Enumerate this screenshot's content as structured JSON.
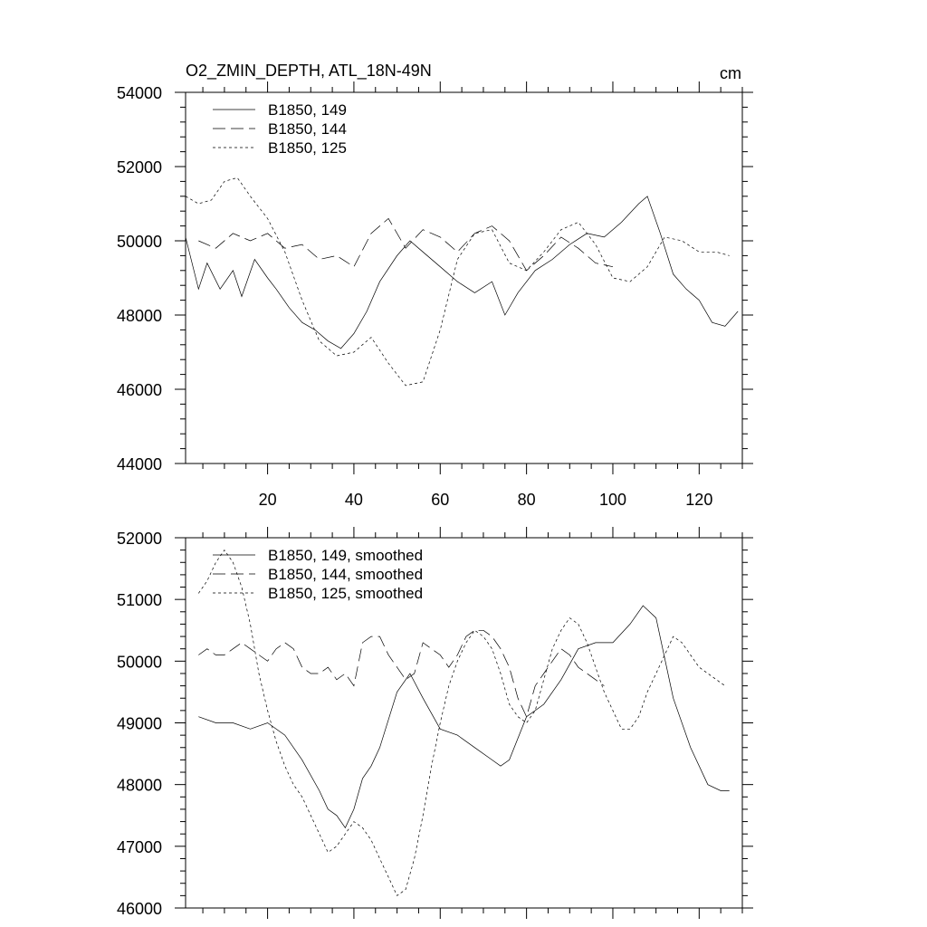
{
  "chart_data": [
    {
      "type": "line",
      "title": "O2_ZMIN_DEPTH, ATL_18N-49N",
      "units": "cm",
      "xlim": [
        1,
        130
      ],
      "ylim": [
        44000,
        54000
      ],
      "x_ticks": [
        20,
        40,
        60,
        80,
        100,
        120
      ],
      "x_tick_labels": [
        "20",
        "40",
        "60",
        "80",
        "100",
        "120"
      ],
      "y_ticks": [
        44000,
        46000,
        48000,
        50000,
        52000,
        54000
      ],
      "y_tick_labels": [
        "44000",
        "46000",
        "48000",
        "50000",
        "52000",
        "54000"
      ],
      "legend_position": "top-left",
      "series": [
        {
          "name": "B1850, 149",
          "dash": "solid",
          "x": [
            1,
            4,
            6,
            9,
            12,
            14,
            17,
            20,
            22,
            25,
            28,
            31,
            34,
            37,
            40,
            43,
            46,
            50,
            53,
            56,
            60,
            64,
            68,
            72,
            75,
            78,
            82,
            86,
            90,
            94,
            98,
            102,
            106,
            108,
            111,
            114,
            117,
            120,
            123,
            126,
            129
          ],
          "values": [
            50100,
            48700,
            49400,
            48700,
            49200,
            48500,
            49500,
            49000,
            48700,
            48200,
            47800,
            47600,
            47300,
            47100,
            47500,
            48100,
            48900,
            49600,
            50000,
            49700,
            49300,
            48900,
            48600,
            48900,
            48000,
            48600,
            49200,
            49500,
            49900,
            50200,
            50100,
            50500,
            51000,
            51200,
            50200,
            49100,
            48700,
            48400,
            47800,
            47700,
            48100
          ]
        },
        {
          "name": "B1850, 144",
          "dash": "long",
          "x": [
            4,
            8,
            12,
            16,
            20,
            24,
            28,
            32,
            36,
            40,
            44,
            48,
            52,
            56,
            60,
            64,
            68,
            72,
            76,
            80,
            84,
            88,
            92,
            96,
            100
          ],
          "values": [
            50000,
            49800,
            50200,
            50000,
            50200,
            49800,
            49900,
            49500,
            49600,
            49300,
            50200,
            50600,
            49800,
            50300,
            50100,
            49700,
            50200,
            50400,
            50000,
            49200,
            49600,
            50100,
            49800,
            49400,
            49300
          ]
        },
        {
          "name": "B1850, 125",
          "dash": "short",
          "x": [
            1,
            4,
            7,
            10,
            13,
            16,
            20,
            24,
            28,
            32,
            36,
            40,
            44,
            48,
            52,
            56,
            60,
            64,
            68,
            72,
            76,
            80,
            84,
            88,
            92,
            96,
            100,
            104,
            108,
            112,
            116,
            120,
            124,
            127
          ],
          "values": [
            51200,
            51000,
            51100,
            51600,
            51700,
            51200,
            50600,
            49700,
            48400,
            47300,
            46900,
            47000,
            47400,
            46700,
            46100,
            46200,
            47600,
            49500,
            50200,
            50300,
            49400,
            49200,
            49700,
            50300,
            50500,
            49900,
            49000,
            48900,
            49300,
            50100,
            50000,
            49700,
            49700,
            49600
          ]
        }
      ]
    },
    {
      "type": "line",
      "title": "",
      "xlim": [
        1,
        130
      ],
      "ylim": [
        46000,
        52000
      ],
      "x_ticks": [
        20,
        40,
        60,
        80,
        100,
        120
      ],
      "y_ticks": [
        46000,
        47000,
        48000,
        49000,
        50000,
        51000,
        52000
      ],
      "y_tick_labels": [
        "46000",
        "47000",
        "48000",
        "49000",
        "50000",
        "51000",
        "52000"
      ],
      "legend_position": "top-left",
      "series": [
        {
          "name": "B1850, 149, smoothed",
          "dash": "solid",
          "x": [
            4,
            8,
            12,
            16,
            20,
            24,
            28,
            32,
            34,
            36,
            38,
            40,
            42,
            44,
            46,
            50,
            53,
            56,
            60,
            64,
            68,
            72,
            74,
            76,
            80,
            84,
            88,
            92,
            96,
            100,
            104,
            107,
            110,
            114,
            118,
            122,
            125,
            127
          ],
          "values": [
            49100,
            49000,
            49000,
            48900,
            49000,
            48800,
            48400,
            47900,
            47600,
            47500,
            47300,
            47600,
            48100,
            48300,
            48600,
            49500,
            49800,
            49400,
            48900,
            48800,
            48600,
            48400,
            48300,
            48400,
            49100,
            49300,
            49700,
            50200,
            50300,
            50300,
            50600,
            50900,
            50700,
            49400,
            48600,
            48000,
            47900,
            47900
          ]
        },
        {
          "name": "B1850, 144, smoothed",
          "dash": "long",
          "x": [
            4,
            6,
            8,
            10,
            12,
            14,
            16,
            18,
            20,
            22,
            24,
            26,
            28,
            30,
            32,
            34,
            36,
            38,
            40,
            42,
            44,
            46,
            48,
            50,
            52,
            54,
            56,
            58,
            60,
            62,
            64,
            66,
            68,
            70,
            72,
            74,
            76,
            78,
            80,
            82,
            84,
            86,
            88,
            90,
            92,
            94,
            96,
            98
          ],
          "values": [
            50100,
            50200,
            50100,
            50100,
            50200,
            50300,
            50200,
            50100,
            50000,
            50200,
            50300,
            50200,
            49900,
            49800,
            49800,
            49900,
            49700,
            49800,
            49600,
            50300,
            50400,
            50400,
            50100,
            49900,
            49700,
            49800,
            50300,
            50200,
            50100,
            49900,
            50100,
            50400,
            50500,
            50500,
            50400,
            50200,
            49900,
            49400,
            49100,
            49600,
            49800,
            50000,
            50200,
            50100,
            49900,
            49800,
            49700,
            49600
          ]
        },
        {
          "name": "B1850, 125, smoothed",
          "dash": "short",
          "x": [
            4,
            6,
            8,
            10,
            12,
            14,
            16,
            18,
            20,
            22,
            24,
            26,
            28,
            30,
            32,
            34,
            36,
            38,
            40,
            42,
            44,
            46,
            48,
            50,
            52,
            54,
            56,
            58,
            60,
            62,
            64,
            66,
            68,
            70,
            72,
            74,
            76,
            78,
            80,
            82,
            84,
            86,
            88,
            90,
            92,
            94,
            96,
            98,
            100,
            102,
            104,
            106,
            108,
            110,
            112,
            114,
            116,
            118,
            120,
            122,
            124,
            126
          ],
          "values": [
            51100,
            51300,
            51600,
            51800,
            51600,
            51200,
            50600,
            49800,
            49200,
            48700,
            48300,
            48000,
            47800,
            47500,
            47200,
            46900,
            47000,
            47200,
            47400,
            47300,
            47100,
            46800,
            46500,
            46200,
            46300,
            46800,
            47500,
            48300,
            49000,
            49600,
            50000,
            50300,
            50500,
            50400,
            50200,
            49800,
            49300,
            49100,
            49000,
            49200,
            49700,
            50200,
            50500,
            50700,
            50600,
            50300,
            49900,
            49500,
            49200,
            48900,
            48900,
            49100,
            49500,
            49800,
            50100,
            50400,
            50300,
            50100,
            49900,
            49800,
            49700,
            49600
          ]
        }
      ]
    }
  ]
}
